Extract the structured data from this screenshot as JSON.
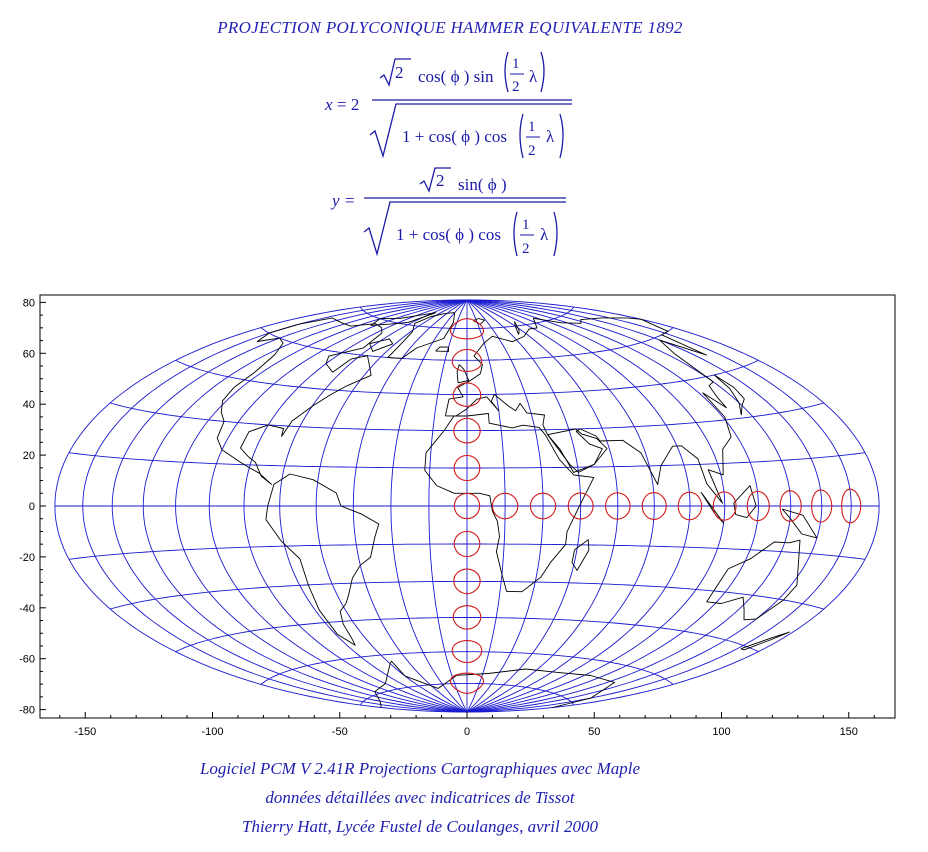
{
  "title": "PROJECTION POLYCONIQUE HAMMER EQUIVALENTE 1892",
  "formula": {
    "x_lhs": "x = 2",
    "x_num": "√2 cos(ϕ) sin(½ λ)",
    "x_den": "1 + cos(ϕ) cos(½ λ)",
    "y_lhs": "y =",
    "y_num": "√2 sin(ϕ)",
    "y_den": "1 + cos(ϕ) cos(½ λ)"
  },
  "axes": {
    "x_ticks": [
      "-150",
      "-100",
      "-50",
      "0",
      "50",
      "100",
      "150"
    ],
    "x_tick_values": [
      -150,
      -100,
      -50,
      0,
      50,
      100,
      150
    ],
    "y_ticks": [
      "80",
      "60",
      "40",
      "20",
      "0",
      "-20",
      "-40",
      "-60",
      "-80"
    ],
    "y_tick_values": [
      80,
      60,
      40,
      20,
      0,
      -20,
      -40,
      -60,
      -80
    ],
    "xlim": [
      -161,
      168
    ],
    "ylim": [
      -82,
      82
    ]
  },
  "map": {
    "projection": "Hammer equal-area",
    "graticule_color": "#1a1ad0",
    "coast_color": "#000000",
    "tissot_color": "#d21a1a",
    "meridian_step_deg": 15,
    "parallel_step_deg": 15,
    "tissot_meridian_latitudes": [
      75,
      60,
      45,
      30,
      15,
      0,
      -15,
      -30,
      -45,
      -60,
      -75
    ],
    "tissot_equator_longitudes": [
      15,
      30,
      45,
      60,
      75,
      90,
      105,
      120,
      135,
      150,
      165
    ]
  },
  "footer": {
    "line1": "Logiciel PCM V 2.41R Projections Cartographiques avec Maple",
    "line2": "données détaillées avec indicatrices de Tissot",
    "line3": "Thierry Hatt, Lycée Fustel de Coulanges, avril 2000"
  }
}
